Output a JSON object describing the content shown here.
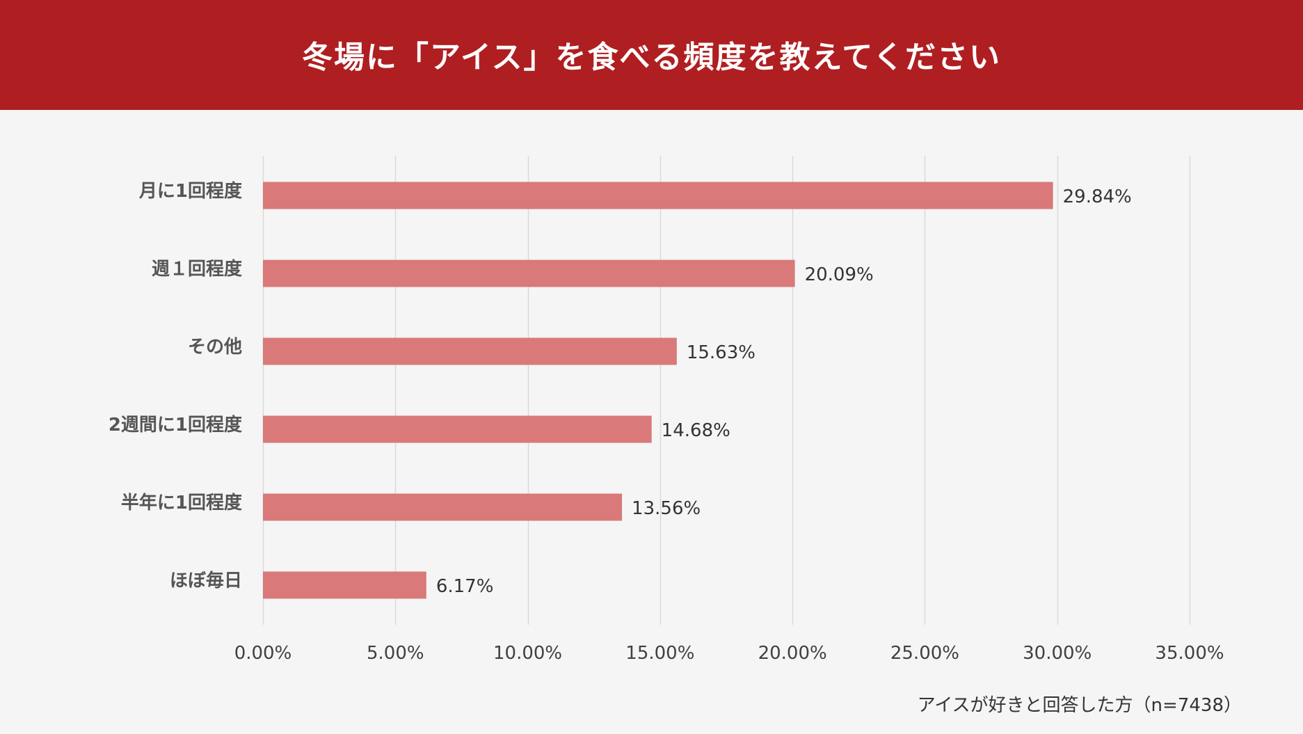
{
  "header": {
    "title": "冬場に「アイス」を食べる頻度を教えてください"
  },
  "colors": {
    "header_bg": "#af1e21",
    "bar": "#d97979",
    "grid": "#d9d9d9",
    "text": "#404040"
  },
  "footnote": "アイスが好きと回答した方（n=7438）",
  "chart_data": {
    "type": "bar",
    "orientation": "horizontal",
    "title": "冬場に「アイス」を食べる頻度を教えてください",
    "categories": [
      "月に1回程度",
      "週１回程度",
      "その他",
      "2週間に1回程度",
      "半年に1回程度",
      "ほぼ毎日"
    ],
    "values": [
      29.84,
      20.09,
      15.63,
      14.68,
      13.56,
      6.17
    ],
    "data_labels": [
      "29.84%",
      "20.09%",
      "15.63%",
      "14.68%",
      "13.56%",
      "6.17%"
    ],
    "xlim": [
      0,
      35
    ],
    "xticks": [
      0,
      5,
      10,
      15,
      20,
      25,
      30,
      35
    ],
    "xtick_labels": [
      "0.00%",
      "5.00%",
      "10.00%",
      "15.00%",
      "20.00%",
      "25.00%",
      "30.00%",
      "35.00%"
    ],
    "grid": true,
    "legend": "none",
    "xlabel": "",
    "ylabel": ""
  }
}
